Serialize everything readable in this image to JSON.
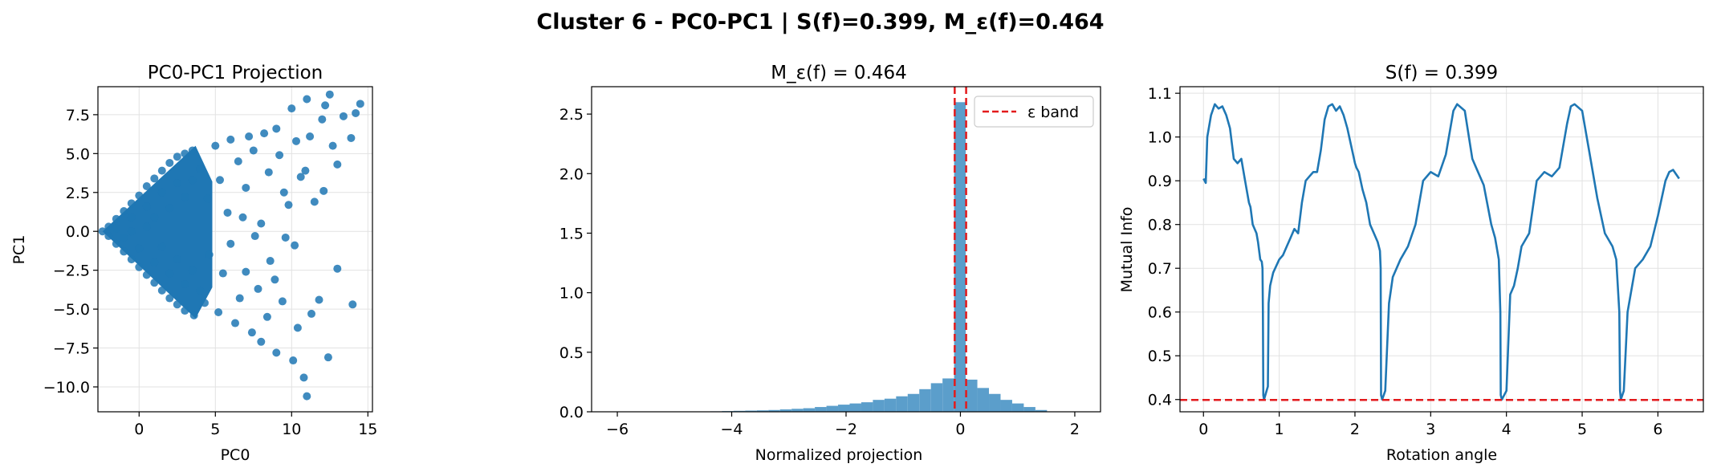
{
  "suptitle": "Cluster 6 - PC0-PC1 | S(f)=0.399, M_ε(f)=0.464",
  "colors": {
    "series": "#1f77b4",
    "hist": "#5b9ecb",
    "band": "#e31a1c",
    "grid": "#e2e2e2"
  },
  "chart_data": [
    {
      "type": "scatter",
      "title": "PC0-PC1 Projection",
      "xlabel": "PC0",
      "ylabel": "PC1",
      "xlim": [
        -2.7,
        15.3
      ],
      "ylim": [
        -11.6,
        9.3
      ],
      "xticks": [
        0,
        5,
        10,
        15
      ],
      "xtick_labels": [
        "0",
        "5",
        "10",
        "15"
      ],
      "yticks": [
        -10,
        -7.5,
        -5,
        -2.5,
        0,
        2.5,
        5,
        7.5
      ],
      "ytick_labels": [
        "−10.0",
        "−7.5",
        "−5.0",
        "−2.5",
        "0.0",
        "2.5",
        "5.0",
        "7.5"
      ],
      "grid": true,
      "points": [
        [
          -2.4,
          0
        ],
        [
          -2,
          0.3
        ],
        [
          -2,
          -0.3
        ],
        [
          -1.5,
          0.8
        ],
        [
          -1.5,
          -0.8
        ],
        [
          -1,
          1.3
        ],
        [
          -1,
          -1.3
        ],
        [
          -0.5,
          1.8
        ],
        [
          -0.5,
          -1.8
        ],
        [
          0,
          2.3
        ],
        [
          0,
          -2.3
        ],
        [
          0.5,
          2.9
        ],
        [
          0.5,
          -2.8
        ],
        [
          1,
          3.4
        ],
        [
          1,
          -3.3
        ],
        [
          1.5,
          3.9
        ],
        [
          1.5,
          -3.8
        ],
        [
          2,
          4.4
        ],
        [
          2,
          -4.3
        ],
        [
          2.5,
          4.8
        ],
        [
          2.5,
          -4.7
        ],
        [
          3,
          5
        ],
        [
          3,
          -5.1
        ],
        [
          3.5,
          5.2
        ],
        [
          3.6,
          -5.4
        ],
        [
          -1.5,
          0.2
        ],
        [
          -1,
          -0.4
        ],
        [
          -0.5,
          0.9
        ],
        [
          0,
          -1.1
        ],
        [
          0.5,
          1.6
        ],
        [
          1,
          -2
        ],
        [
          1.5,
          2.5
        ],
        [
          2,
          -2.7
        ],
        [
          2.5,
          3.1
        ],
        [
          3,
          -3.4
        ],
        [
          -0.5,
          0
        ],
        [
          0.5,
          0.3
        ],
        [
          1,
          0.9
        ],
        [
          1.5,
          -1
        ],
        [
          2,
          1.5
        ],
        [
          2.5,
          -1.8
        ],
        [
          3,
          2.2
        ],
        [
          3.5,
          -2.5
        ],
        [
          3.5,
          3.3
        ],
        [
          4,
          -3.8
        ],
        [
          4,
          4
        ],
        [
          4.3,
          -4.6
        ],
        [
          4.5,
          2.1
        ],
        [
          4.6,
          -1.5
        ],
        [
          5,
          5.5
        ],
        [
          5.2,
          -5.2
        ],
        [
          5.3,
          3.3
        ],
        [
          5.5,
          -2.7
        ],
        [
          5.8,
          1.2
        ],
        [
          6,
          -0.8
        ],
        [
          6,
          5.9
        ],
        [
          6.3,
          -5.9
        ],
        [
          6.5,
          4.5
        ],
        [
          6.6,
          -4.3
        ],
        [
          7,
          2.8
        ],
        [
          7,
          -2.6
        ],
        [
          7.2,
          6.1
        ],
        [
          7.4,
          -6.5
        ],
        [
          7.5,
          5.2
        ],
        [
          7.8,
          -3.7
        ],
        [
          8,
          0.5
        ],
        [
          8,
          -7.1
        ],
        [
          8.2,
          6.3
        ],
        [
          8.4,
          -5.5
        ],
        [
          8.5,
          3.8
        ],
        [
          8.6,
          -1.9
        ],
        [
          9,
          6.6
        ],
        [
          9,
          -7.8
        ],
        [
          9.2,
          4.9
        ],
        [
          9.4,
          -4.5
        ],
        [
          9.5,
          2.5
        ],
        [
          9.6,
          -0.4
        ],
        [
          10,
          7.9
        ],
        [
          10.1,
          -8.3
        ],
        [
          10.3,
          5.8
        ],
        [
          10.4,
          -6.2
        ],
        [
          10.6,
          3.5
        ],
        [
          10.8,
          -9.4
        ],
        [
          11,
          8.5
        ],
        [
          11,
          -10.6
        ],
        [
          11.2,
          6.1
        ],
        [
          11.3,
          -5.3
        ],
        [
          11.5,
          1.9
        ],
        [
          11.8,
          -4.4
        ],
        [
          12,
          7.2
        ],
        [
          12.2,
          8.1
        ],
        [
          12.5,
          8.8
        ],
        [
          12.4,
          -8.1
        ],
        [
          12.7,
          5.5
        ],
        [
          13,
          4.3
        ],
        [
          13,
          -2.4
        ],
        [
          13.4,
          7.4
        ],
        [
          13.9,
          6
        ],
        [
          14,
          -4.7
        ],
        [
          14.2,
          7.6
        ],
        [
          14.5,
          8.2
        ],
        [
          10.2,
          -0.9
        ],
        [
          9.8,
          1.7
        ],
        [
          7.6,
          -0.3
        ],
        [
          6.8,
          0.9
        ],
        [
          12.1,
          2.6
        ],
        [
          8.9,
          -3.1
        ],
        [
          10.9,
          3.9
        ]
      ]
    },
    {
      "type": "bar",
      "title": "M_ε(f) = 0.464",
      "xlabel": "Normalized projection",
      "ylabel": "",
      "xlim": [
        -6.45,
        2.45
      ],
      "ylim": [
        0,
        2.73
      ],
      "xticks": [
        -6,
        -4,
        -2,
        0,
        2
      ],
      "xtick_labels": [
        "−6",
        "−4",
        "−2",
        "0",
        "2"
      ],
      "yticks": [
        0,
        0.5,
        1,
        1.5,
        2,
        2.5
      ],
      "ytick_labels": [
        "0.0",
        "0.5",
        "1.0",
        "1.5",
        "2.0",
        "2.5"
      ],
      "grid": false,
      "legend": {
        "label": "ε band",
        "placement": "upper right"
      },
      "epsilon_band": [
        -0.1,
        0.1
      ],
      "bin_width": 0.203,
      "bin_starts": [
        -6.2,
        -5.997,
        -5.794,
        -5.591,
        -5.388,
        -5.185,
        -4.982,
        -4.779,
        -4.576,
        -4.373,
        -4.17,
        -3.967,
        -3.764,
        -3.561,
        -3.358,
        -3.155,
        -2.952,
        -2.749,
        -2.546,
        -2.343,
        -2.14,
        -1.937,
        -1.734,
        -1.531,
        -1.328,
        -1.125,
        -0.922,
        -0.719,
        -0.516,
        -0.313,
        -0.11,
        0.093,
        0.296,
        0.499,
        0.702,
        0.905,
        1.108,
        1.311
      ],
      "values": [
        0.002,
        0.002,
        0.002,
        0.002,
        0.002,
        0.002,
        0.002,
        0.002,
        0.003,
        0.004,
        0.006,
        0.008,
        0.01,
        0.012,
        0.015,
        0.02,
        0.025,
        0.03,
        0.04,
        0.05,
        0.06,
        0.07,
        0.08,
        0.1,
        0.11,
        0.13,
        0.15,
        0.19,
        0.24,
        0.28,
        2.6,
        0.27,
        0.2,
        0.15,
        0.1,
        0.07,
        0.04,
        0.015
      ]
    },
    {
      "type": "line",
      "title": "S(f) = 0.399",
      "xlabel": "Rotation angle",
      "ylabel": "Mutual Info",
      "xlim": [
        -0.31,
        6.6
      ],
      "ylim": [
        0.372,
        1.115
      ],
      "xticks": [
        0,
        1,
        2,
        3,
        4,
        5,
        6
      ],
      "xtick_labels": [
        "0",
        "1",
        "2",
        "3",
        "4",
        "5",
        "6"
      ],
      "yticks": [
        0.4,
        0.5,
        0.6,
        0.7,
        0.8,
        0.9,
        1,
        1.1
      ],
      "ytick_labels": [
        "0.4",
        "0.5",
        "0.6",
        "0.7",
        "0.8",
        "0.9",
        "1.0",
        "1.1"
      ],
      "grid": true,
      "hline": 0.399,
      "x": [
        0,
        0.03,
        0.05,
        0.1,
        0.15,
        0.2,
        0.25,
        0.3,
        0.35,
        0.4,
        0.45,
        0.5,
        0.55,
        0.6,
        0.62,
        0.65,
        0.7,
        0.72,
        0.75,
        0.77,
        0.78,
        0.785,
        0.79,
        0.8,
        0.85,
        0.86,
        0.88,
        0.92,
        1,
        1.05,
        1.1,
        1.15,
        1.2,
        1.25,
        1.3,
        1.35,
        1.4,
        1.45,
        1.5,
        1.55,
        1.6,
        1.65,
        1.7,
        1.75,
        1.8,
        1.85,
        1.9,
        2,
        2.02,
        2.05,
        2.1,
        2.15,
        2.2,
        2.25,
        2.3,
        2.33,
        2.34,
        2.345,
        2.36,
        2.4,
        2.45,
        2.5,
        2.6,
        2.7,
        2.8,
        2.9,
        3,
        3.1,
        3.2,
        3.3,
        3.35,
        3.45,
        3.55,
        3.6,
        3.7,
        3.8,
        3.85,
        3.9,
        3.92,
        3.925,
        3.94,
        4,
        4.05,
        4.1,
        4.15,
        4.2,
        4.3,
        4.4,
        4.5,
        4.6,
        4.7,
        4.8,
        4.85,
        4.9,
        5,
        5.1,
        5.2,
        5.3,
        5.4,
        5.45,
        5.49,
        5.5,
        5.51,
        5.55,
        5.6,
        5.7,
        5.8,
        5.9,
        6,
        6.1,
        6.15,
        6.2,
        6.28
      ],
      "y": [
        0.905,
        0.895,
        1,
        1.05,
        1.075,
        1.065,
        1.07,
        1.05,
        1.02,
        0.95,
        0.94,
        0.95,
        0.9,
        0.85,
        0.84,
        0.8,
        0.78,
        0.76,
        0.72,
        0.715,
        0.7,
        0.6,
        0.41,
        0.4,
        0.43,
        0.62,
        0.66,
        0.69,
        0.72,
        0.73,
        0.75,
        0.77,
        0.79,
        0.78,
        0.85,
        0.9,
        0.91,
        0.92,
        0.92,
        0.97,
        1.04,
        1.07,
        1.075,
        1.06,
        1.07,
        1.05,
        1.02,
        0.94,
        0.93,
        0.92,
        0.88,
        0.85,
        0.8,
        0.78,
        0.76,
        0.74,
        0.7,
        0.41,
        0.4,
        0.42,
        0.62,
        0.68,
        0.72,
        0.75,
        0.8,
        0.9,
        0.92,
        0.91,
        0.96,
        1.06,
        1.075,
        1.06,
        0.95,
        0.93,
        0.89,
        0.8,
        0.77,
        0.72,
        0.6,
        0.41,
        0.4,
        0.42,
        0.64,
        0.66,
        0.7,
        0.75,
        0.78,
        0.9,
        0.92,
        0.91,
        0.93,
        1.03,
        1.07,
        1.075,
        1.06,
        0.96,
        0.86,
        0.78,
        0.75,
        0.72,
        0.6,
        0.42,
        0.4,
        0.42,
        0.6,
        0.7,
        0.72,
        0.75,
        0.82,
        0.9,
        0.92,
        0.925,
        0.905
      ]
    }
  ]
}
